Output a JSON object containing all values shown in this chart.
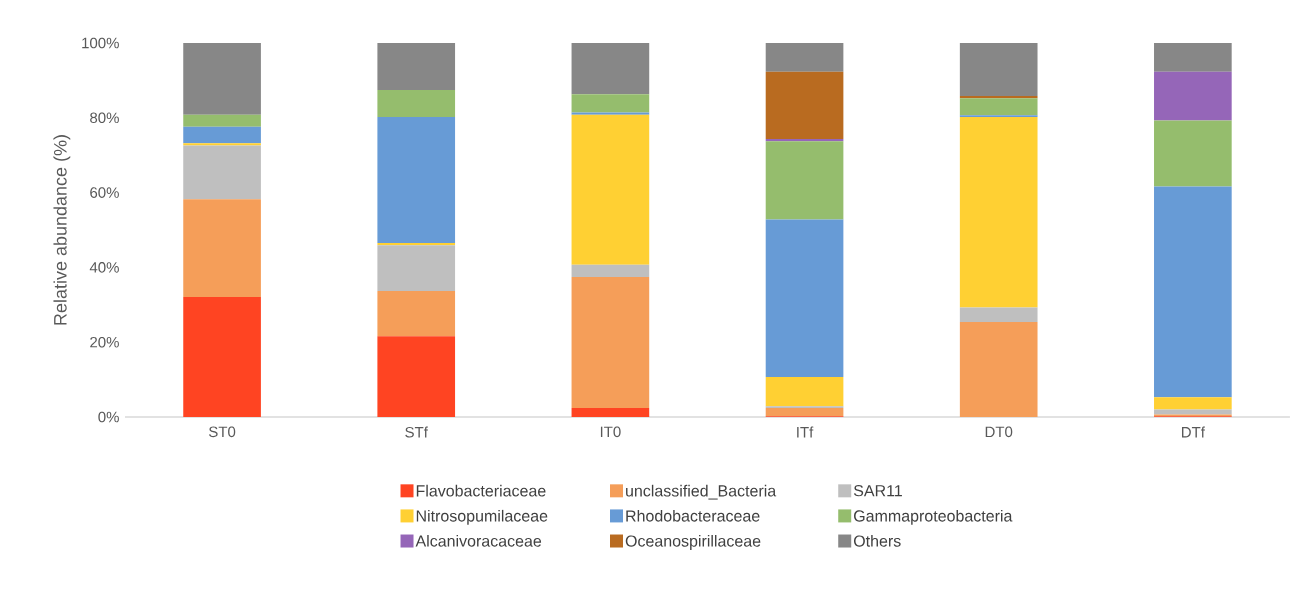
{
  "chart_data": {
    "type": "bar",
    "stacked": true,
    "ylabel": "Relative abundance (%)",
    "categories": [
      "ST0",
      "STf",
      "IT0",
      "ITf",
      "DT0",
      "DTf"
    ],
    "ylim": [
      0,
      100
    ],
    "yticks": [
      {
        "value": 0,
        "label": "0%"
      },
      {
        "value": 20,
        "label": "20%"
      },
      {
        "value": 40,
        "label": "40%"
      },
      {
        "value": 60,
        "label": "60%"
      },
      {
        "value": 80,
        "label": "80%"
      },
      {
        "value": 100,
        "label": "100%"
      }
    ],
    "legend": "bottom",
    "series": [
      {
        "name": "Flavobacteriaceae",
        "color": "#ff4422",
        "values": [
          32.1,
          21.6,
          2.4,
          0.2,
          0,
          0.2
        ]
      },
      {
        "name": "unclassified_Bacteria",
        "color": "#f59e59",
        "values": [
          26.1,
          12.1,
          35.0,
          2.2,
          25.4,
          0.5
        ]
      },
      {
        "name": "SAR11",
        "color": "#bfbfbf",
        "values": [
          14.4,
          12.2,
          3.3,
          0.5,
          3.9,
          1.3
        ]
      },
      {
        "name": "Nitrosopumilaceae",
        "color": "#ffd033",
        "values": [
          0.6,
          0.6,
          40.1,
          7.8,
          50.9,
          3.3
        ]
      },
      {
        "name": "Rhodobacteraceae",
        "color": "#679bd6",
        "values": [
          4.4,
          33.7,
          0.6,
          42.1,
          0.5,
          56.3
        ]
      },
      {
        "name": "Gammaproteobacteria",
        "color": "#95bd6d",
        "values": [
          3.2,
          7.2,
          4.9,
          20.9,
          4.5,
          17.7
        ]
      },
      {
        "name": "Alcanivoracaceae",
        "color": "#9566b8",
        "values": [
          0,
          0,
          0,
          0.6,
          0,
          13.0
        ]
      },
      {
        "name": "Oceanospirillaceae",
        "color": "#b96b20",
        "values": [
          0,
          0,
          0,
          18.0,
          0.6,
          0
        ]
      },
      {
        "name": "Others",
        "color": "#878787",
        "values": [
          19.2,
          12.6,
          13.7,
          7.7,
          14.2,
          7.7
        ]
      }
    ]
  }
}
